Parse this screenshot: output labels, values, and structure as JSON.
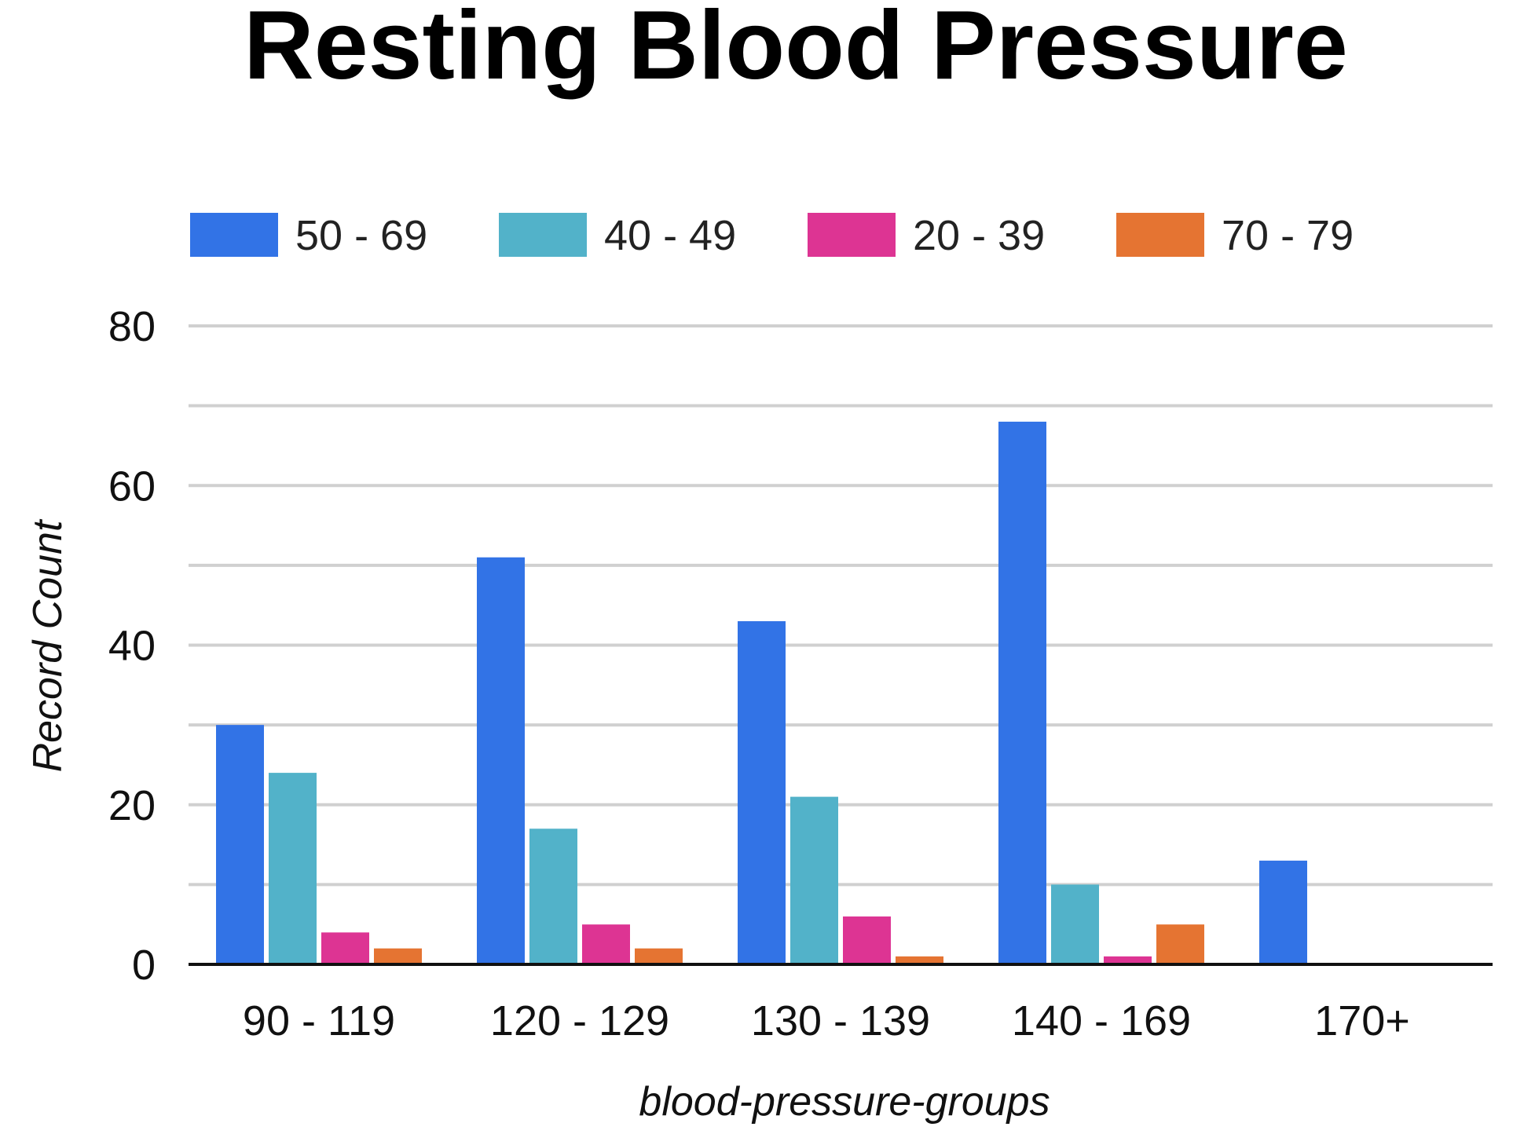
{
  "chart_data": {
    "type": "bar",
    "title": "Resting Blood Pressure",
    "xlabel": "blood-pressure-groups",
    "ylabel": "Record Count",
    "categories": [
      "90 - 119",
      "120 - 129",
      "130 - 139",
      "140 - 169",
      "170+"
    ],
    "series": [
      {
        "name": "50 - 69",
        "color": "#3273e6",
        "values": [
          30,
          51,
          43,
          68,
          13
        ]
      },
      {
        "name": "40 - 49",
        "color": "#52b2c9",
        "values": [
          24,
          17,
          21,
          10,
          0
        ]
      },
      {
        "name": "20 - 39",
        "color": "#dd3493",
        "values": [
          4,
          5,
          6,
          1,
          0
        ]
      },
      {
        "name": "70 - 79",
        "color": "#e57432",
        "values": [
          2,
          2,
          1,
          5,
          0
        ]
      }
    ],
    "ylim": [
      0,
      80
    ],
    "yticks": [
      0,
      20,
      40,
      60,
      80
    ],
    "grid": true,
    "legend_position": "top"
  }
}
